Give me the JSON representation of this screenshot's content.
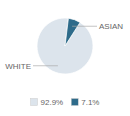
{
  "chart_data": {
    "type": "pie",
    "categories": [
      "WHITE",
      "ASIAN"
    ],
    "values": [
      92.9,
      7.1
    ],
    "value_labels": [
      "92.9%",
      "7.1%"
    ],
    "colors": [
      "#dce4ec",
      "#2e6b8a"
    ],
    "legend": "bottom"
  }
}
